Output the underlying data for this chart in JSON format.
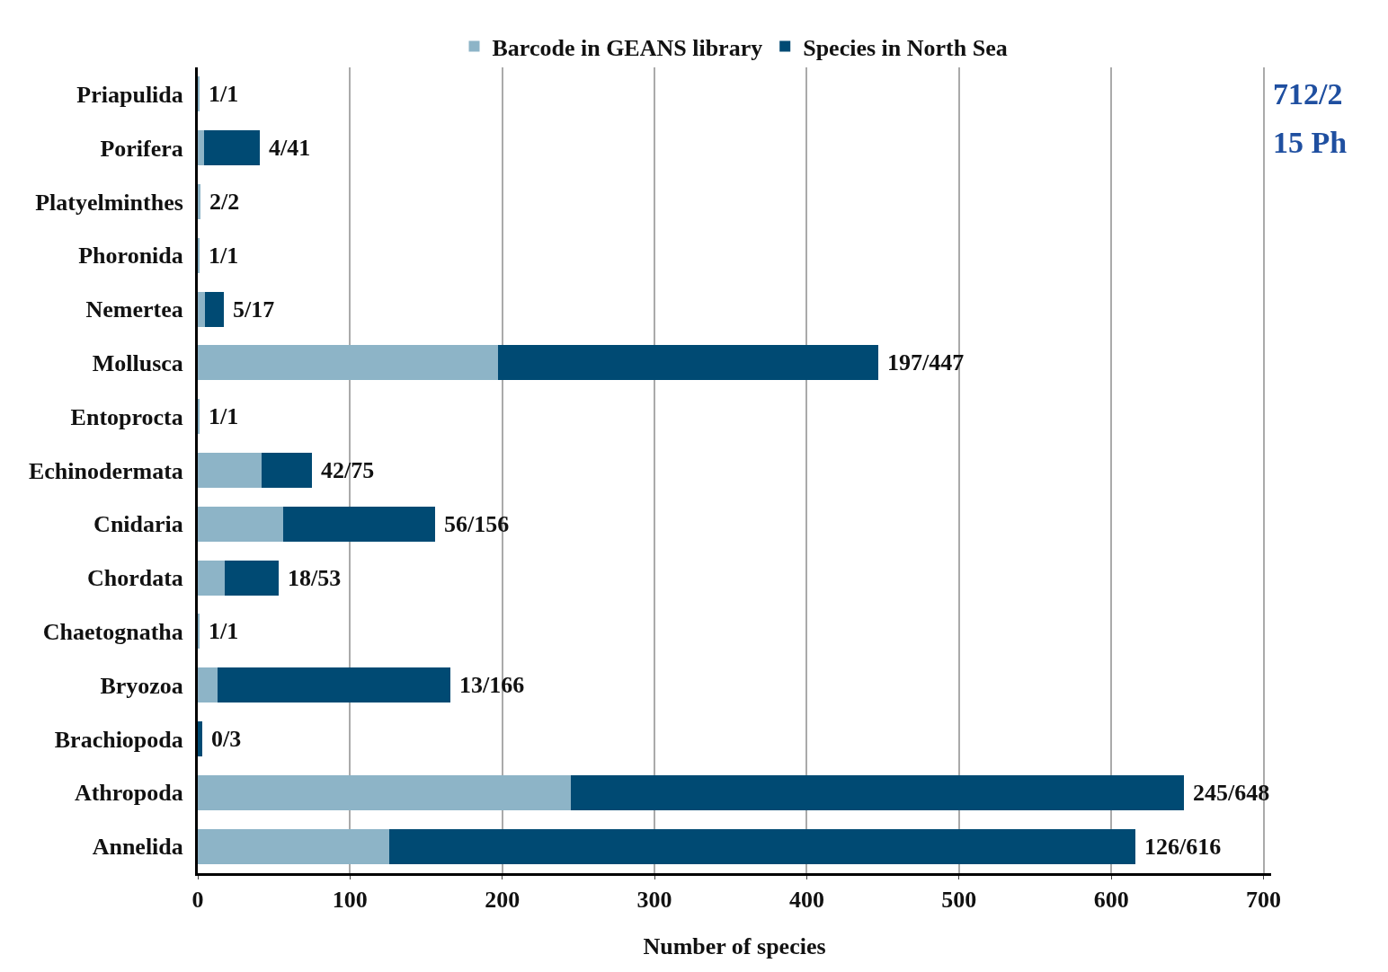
{
  "chart_data": {
    "type": "bar",
    "orientation": "horizontal",
    "stacked": true,
    "xlabel": "Number of species",
    "categories": [
      "Priapulida",
      "Porifera",
      "Platyelminthes",
      "Phoronida",
      "Nemertea",
      "Mollusca",
      "Entoprocta",
      "Echinodermata",
      "Cnidaria",
      "Chordata",
      "Chaetognatha",
      "Bryozoa",
      "Brachiopoda",
      "Athropoda",
      "Annelida"
    ],
    "series": [
      {
        "name": "Barcode in GEANS library",
        "color": "#8db4c7",
        "values": [
          1,
          4,
          2,
          1,
          5,
          197,
          1,
          42,
          56,
          18,
          1,
          13,
          0,
          245,
          126
        ]
      },
      {
        "name": "Species in North Sea",
        "color": "#004a73",
        "values": [
          0,
          37,
          0,
          0,
          12,
          250,
          0,
          33,
          100,
          35,
          0,
          153,
          3,
          403,
          490
        ]
      }
    ],
    "xlim": [
      0,
      705
    ],
    "xticks": [
      0,
      100,
      200,
      300,
      400,
      500,
      600,
      700
    ],
    "grid": "x",
    "legend": "top",
    "annotations": [
      "712/2",
      "15 Ph",
      {
        "text": "1/1",
        "x": 1,
        "y": "Priapulida"
      },
      {
        "text": "4/41",
        "x": 41,
        "y": "Porifera"
      },
      {
        "text": "2/2",
        "x": 2,
        "y": "Platyelminthes"
      },
      {
        "text": "1/1",
        "x": 1,
        "y": "Phoronida"
      },
      {
        "text": "5/17",
        "x": 17,
        "y": "Nemertea"
      },
      {
        "text": "197/447",
        "x": 447,
        "y": "Mollusca"
      },
      {
        "text": "1/1",
        "x": 1,
        "y": "Entoprocta"
      },
      {
        "text": "42/75",
        "x": 75,
        "y": "Echinodermata"
      },
      {
        "text": "56/156",
        "x": 156,
        "y": "Cnidaria"
      },
      {
        "text": "18/53",
        "x": 53,
        "y": "Chordata"
      },
      {
        "text": "1/1",
        "x": 1,
        "y": "Chaetognatha"
      },
      {
        "text": "13/166",
        "x": 166,
        "y": "Bryozoa"
      },
      {
        "text": "0/3",
        "x": 3,
        "y": "Brachiopoda"
      },
      {
        "text": "245/648",
        "x": 648,
        "y": "Athropoda"
      },
      {
        "text": "126/616",
        "x": 616,
        "y": "Annelida"
      }
    ]
  }
}
